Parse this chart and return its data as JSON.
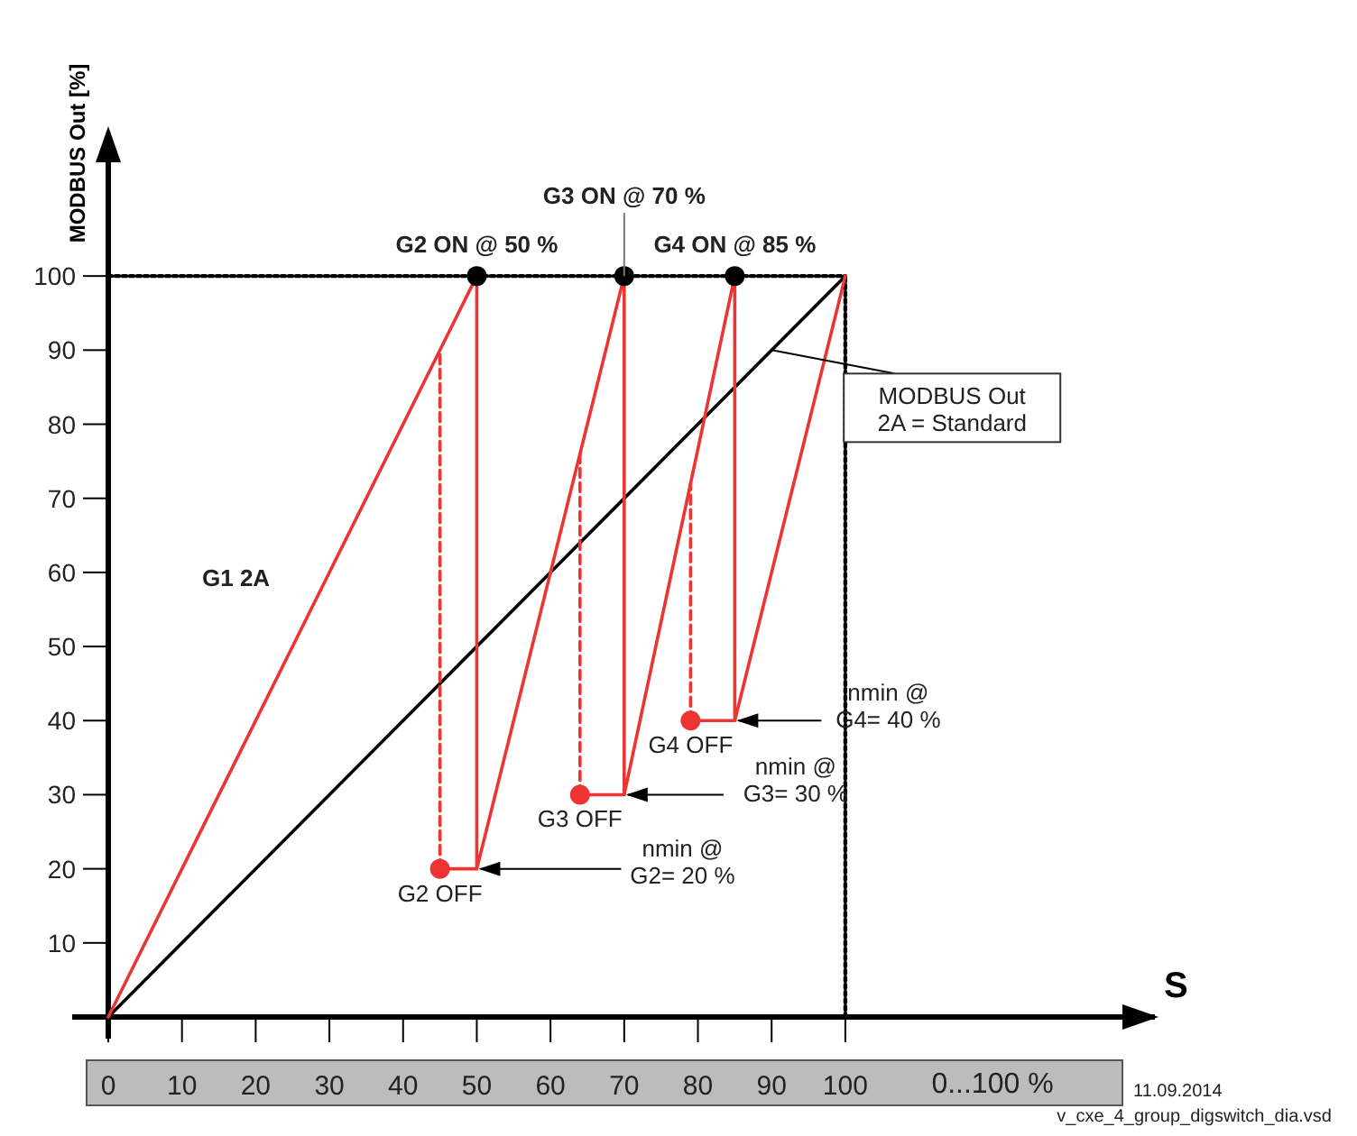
{
  "chart_data": {
    "type": "line",
    "ylabel": "MODBUS Out [%]",
    "xlabel": "S",
    "xlim": [
      0,
      142
    ],
    "ylim": [
      0,
      119
    ],
    "xticks": [
      0,
      10,
      20,
      30,
      40,
      50,
      60,
      70,
      80,
      90,
      100
    ],
    "yticks": [
      10,
      20,
      30,
      40,
      50,
      60,
      70,
      80,
      90,
      100
    ],
    "series": [
      {
        "color": "#000000",
        "line_style": "dotted",
        "x": [
          0,
          100
        ],
        "values": [
          100,
          100
        ]
      },
      {
        "color": "#000000",
        "line_style": "dotted",
        "x": [
          100,
          100
        ],
        "values": [
          0,
          100
        ]
      },
      {
        "color": "#000000",
        "line_style": "solid",
        "x": [
          0,
          100
        ],
        "values": [
          0,
          100
        ]
      },
      {
        "color": "#ee3333",
        "line_style": "solid",
        "x": [
          0,
          50,
          50,
          70,
          70,
          85,
          85,
          100
        ],
        "values": [
          0,
          100,
          20,
          100,
          30,
          100,
          40,
          100
        ]
      },
      {
        "color": "#ee3333",
        "line_style": "solid",
        "x": [
          50,
          45
        ],
        "values": [
          20,
          20
        ]
      },
      {
        "color": "#ee3333",
        "line_style": "solid",
        "x": [
          70,
          64
        ],
        "values": [
          30,
          30
        ]
      },
      {
        "color": "#ee3333",
        "line_style": "solid",
        "x": [
          85,
          79
        ],
        "values": [
          40,
          40
        ]
      },
      {
        "color": "#ee3333",
        "line_style": "dashed",
        "x": [
          45,
          45
        ],
        "values": [
          20,
          90
        ]
      },
      {
        "color": "#ee3333",
        "line_style": "dashed",
        "x": [
          64,
          64
        ],
        "values": [
          30,
          76
        ]
      },
      {
        "color": "#ee3333",
        "line_style": "dashed",
        "x": [
          79,
          79
        ],
        "values": [
          40,
          72
        ]
      },
      {
        "type": "scatter",
        "color": "#ee3333",
        "marker": "circle",
        "x": [
          45,
          64,
          79
        ],
        "values": [
          20,
          30,
          40
        ]
      },
      {
        "type": "scatter",
        "color": "#000000",
        "marker": "circle",
        "x": [
          50,
          70,
          85
        ],
        "values": [
          100,
          100,
          100
        ]
      }
    ],
    "annotations": [
      {
        "text": "G2 ON @ 50 %",
        "x": 50,
        "y": 100
      },
      {
        "text": "G3 ON @ 70 %",
        "x": 70,
        "y": 100
      },
      {
        "text": "G4 ON @ 85 %",
        "x": 85,
        "y": 100
      },
      {
        "text": "G2 OFF",
        "x": 45,
        "y": 20
      },
      {
        "text": "G3 OFF",
        "x": 64,
        "y": 30
      },
      {
        "text": "G4 OFF",
        "x": 79,
        "y": 40
      },
      {
        "text": "MODBUS Out\n2A = Standard",
        "x": 90,
        "y": 90
      },
      {
        "text": "nmin @\nG2= 20 %",
        "x": 50,
        "y": 20
      },
      {
        "text": "nmin @\nG3= 30 %",
        "x": 70,
        "y": 30
      },
      {
        "text": "nmin @\nG4= 40 %",
        "x": 85,
        "y": 40
      },
      "G1 2A",
      "0...100 %",
      "11.09.2014",
      "v_cxe_4_group_digswitch_dia.vsd"
    ]
  }
}
